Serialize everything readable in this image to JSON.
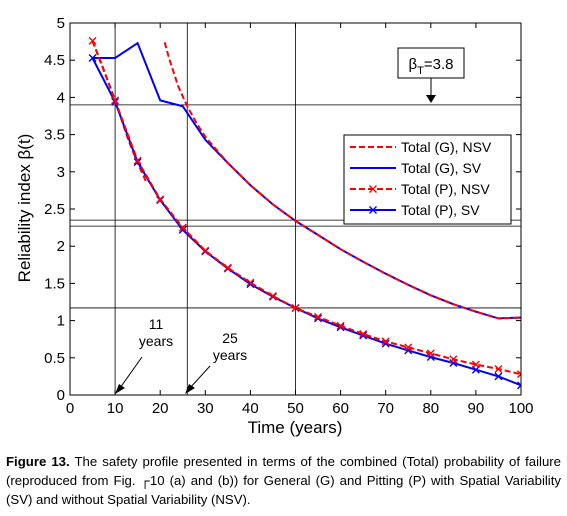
{
  "chart_data": {
    "type": "line",
    "title": "",
    "xlabel": "Time (years)",
    "ylabel": "Reliability index β(t)",
    "xlim": [
      0,
      100
    ],
    "ylim": [
      0,
      5
    ],
    "xticks": [
      "0",
      "10",
      "20",
      "30",
      "40",
      "50",
      "60",
      "70",
      "80",
      "90",
      "100"
    ],
    "yticks": [
      "0",
      "0.5",
      "1",
      "1.5",
      "2",
      "2.5",
      "3",
      "3.5",
      "4",
      "4.5",
      "5"
    ],
    "grid": false,
    "legend_position": "right",
    "series": [
      {
        "name": "Total (G), NSV",
        "color": "#ff0000",
        "style": "dashed",
        "marker": "none",
        "x": [
          5,
          7,
          10,
          13,
          15,
          17
        ],
        "y": [
          4.76,
          4.45,
          3.96,
          3.42,
          3.12,
          2.85
        ],
        "x2": [
          21,
          22,
          24,
          26,
          28,
          30,
          35,
          40,
          45,
          50,
          55,
          60,
          65,
          70,
          75,
          80,
          85,
          90,
          95,
          100
        ],
        "y2": [
          4.74,
          4.52,
          4.15,
          3.88,
          3.66,
          3.47,
          3.12,
          2.82,
          2.56,
          2.34,
          2.15,
          1.96,
          1.79,
          1.63,
          1.48,
          1.34,
          1.22,
          1.12,
          1.03,
          1.04
        ]
      },
      {
        "name": "Total (G), SV",
        "color": "#0000ff",
        "style": "solid",
        "marker": "none",
        "x": [
          5,
          10,
          15,
          20,
          25,
          30,
          35,
          40,
          45,
          50,
          55,
          60,
          65,
          70,
          75,
          80,
          85,
          90,
          95,
          100
        ],
        "y": [
          4.53,
          4.53,
          4.73,
          3.96,
          3.88,
          3.43,
          3.12,
          2.82,
          2.56,
          2.34,
          2.15,
          1.96,
          1.79,
          1.63,
          1.48,
          1.34,
          1.22,
          1.12,
          1.03,
          1.04
        ]
      },
      {
        "name": "Total (P), NSV",
        "color": "#ff0000",
        "style": "dashed",
        "marker": "x",
        "x": [
          5,
          10,
          15,
          20,
          25,
          30,
          35,
          40,
          45,
          50,
          55,
          60,
          65,
          70,
          75,
          80,
          85,
          90,
          95,
          100
        ],
        "y": [
          4.76,
          3.96,
          3.15,
          2.63,
          2.25,
          1.94,
          1.71,
          1.51,
          1.33,
          1.17,
          1.05,
          0.93,
          0.82,
          0.72,
          0.64,
          0.56,
          0.48,
          0.41,
          0.35,
          0.28
        ]
      },
      {
        "name": "Total (P), SV",
        "color": "#0000ff",
        "style": "solid",
        "marker": "x",
        "x": [
          5,
          10,
          15,
          20,
          25,
          30,
          35,
          40,
          45,
          50,
          55,
          60,
          65,
          70,
          75,
          80,
          85,
          90,
          95,
          100
        ],
        "y": [
          4.53,
          3.94,
          3.13,
          2.62,
          2.22,
          1.93,
          1.7,
          1.49,
          1.32,
          1.17,
          1.03,
          0.91,
          0.8,
          0.69,
          0.6,
          0.51,
          0.43,
          0.34,
          0.25,
          0.13
        ]
      }
    ],
    "reference_lines": {
      "horizontal": [
        3.9,
        2.35,
        2.27,
        1.17
      ],
      "vertical": [
        10,
        26,
        50
      ]
    },
    "annotations": {
      "beta_target": "β_T=3.8",
      "eleven_years": [
        "11",
        "years"
      ],
      "twentyfive_years": [
        "25",
        "years"
      ]
    }
  },
  "caption": {
    "label": "Figure 13.",
    "text": " The safety profile presented in terms of the combined (Total) probability of failure (reproduced from Fig. ┌10 (a) and (b)) for General (G) and Pitting (P) with Spatial Variability (SV) and without Spatial Variability (NSV)."
  }
}
